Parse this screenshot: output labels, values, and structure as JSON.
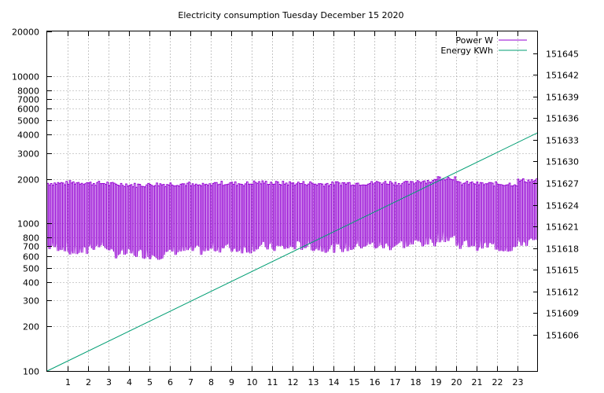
{
  "chart_data": {
    "type": "line",
    "title": "Electricity consumption Tuesday December 15 2020",
    "x_axis": {
      "range": [
        0,
        24
      ],
      "ticks": [
        1,
        2,
        3,
        4,
        5,
        6,
        7,
        8,
        9,
        10,
        11,
        12,
        13,
        14,
        15,
        16,
        17,
        18,
        19,
        20,
        21,
        22,
        23
      ],
      "grid": true
    },
    "y_axis_left": {
      "scale": "log",
      "range": [
        100,
        20000
      ],
      "ticks": [
        100,
        200,
        300,
        400,
        500,
        600,
        700,
        800,
        1000,
        2000,
        3000,
        4000,
        5000,
        6000,
        7000,
        8000,
        10000,
        20000
      ],
      "grid": true
    },
    "y_axis_right": {
      "scale": "linear",
      "range": [
        151601,
        151648
      ],
      "ticks": [
        151606,
        151609,
        151612,
        151615,
        151618,
        151621,
        151624,
        151627,
        151630,
        151633,
        151636,
        151639,
        151642,
        151645
      ]
    },
    "legend": {
      "position": "top-right"
    },
    "series": [
      {
        "name": "Power W",
        "axis": "left",
        "color": "#9400d3",
        "style": "oscillating",
        "segments": [
          {
            "x": [
              0,
              1
            ],
            "high": 1880,
            "low": 690
          },
          {
            "x": [
              1,
              2
            ],
            "high": 1900,
            "low": 640
          },
          {
            "x": [
              2,
              3
            ],
            "high": 1880,
            "low": 700
          },
          {
            "x": [
              3,
              4
            ],
            "high": 1850,
            "low": 620
          },
          {
            "x": [
              4,
              5
            ],
            "high": 1830,
            "low": 620
          },
          {
            "x": [
              5,
              6
            ],
            "high": 1850,
            "low": 610
          },
          {
            "x": [
              6,
              7
            ],
            "high": 1860,
            "low": 650
          },
          {
            "x": [
              7,
              8
            ],
            "high": 1820,
            "low": 650
          },
          {
            "x": [
              8,
              9
            ],
            "high": 1880,
            "low": 680
          },
          {
            "x": [
              9,
              10
            ],
            "high": 1870,
            "low": 670
          },
          {
            "x": [
              10,
              11
            ],
            "high": 1900,
            "low": 690
          },
          {
            "x": [
              11,
              12
            ],
            "high": 1880,
            "low": 680
          },
          {
            "x": [
              12,
              13
            ],
            "high": 1880,
            "low": 700
          },
          {
            "x": [
              13,
              14
            ],
            "high": 1860,
            "low": 680
          },
          {
            "x": [
              14,
              15
            ],
            "high": 1880,
            "low": 680
          },
          {
            "x": [
              15,
              16
            ],
            "high": 1880,
            "low": 710
          },
          {
            "x": [
              16,
              17
            ],
            "high": 1900,
            "low": 700
          },
          {
            "x": [
              17,
              18
            ],
            "high": 1880,
            "low": 720
          },
          {
            "x": [
              18,
              19
            ],
            "high": 1950,
            "low": 740
          },
          {
            "x": [
              19,
              20
            ],
            "high": 2050,
            "low": 800
          },
          {
            "x": [
              20,
              21
            ],
            "high": 1880,
            "low": 720
          },
          {
            "x": [
              21,
              22
            ],
            "high": 1860,
            "low": 700
          },
          {
            "x": [
              22,
              23
            ],
            "high": 1860,
            "low": 680
          },
          {
            "x": [
              23,
              24
            ],
            "high": 1960,
            "low": 740
          }
        ]
      },
      {
        "name": "Energy KWh",
        "axis": "right",
        "color": "#009e73",
        "x": [
          0,
          24
        ],
        "y": [
          151601,
          151634
        ]
      }
    ]
  }
}
